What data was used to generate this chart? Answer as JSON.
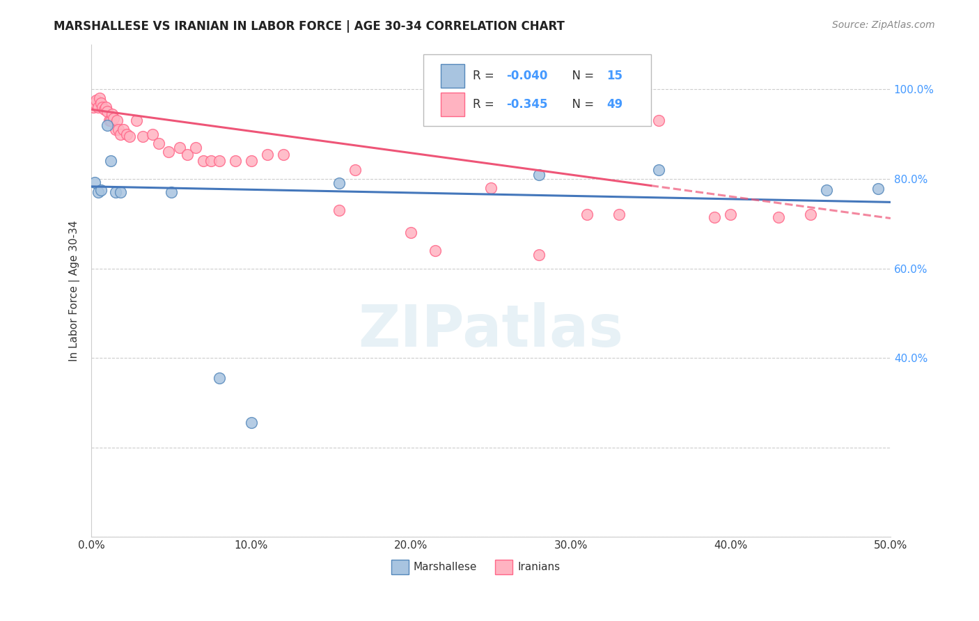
{
  "title": "MARSHALLESE VS IRANIAN IN LABOR FORCE | AGE 30-34 CORRELATION CHART",
  "source_text": "Source: ZipAtlas.com",
  "ylabel_text": "In Labor Force | Age 30-34",
  "xlim": [
    0.0,
    0.5
  ],
  "ylim": [
    0.0,
    1.1
  ],
  "x_tick_vals": [
    0.0,
    0.1,
    0.2,
    0.3,
    0.4,
    0.5
  ],
  "x_tick_labels": [
    "0.0%",
    "10.0%",
    "20.0%",
    "30.0%",
    "40.0%",
    "50.0%"
  ],
  "right_y_ticks": [
    0.4,
    0.6,
    0.8,
    1.0
  ],
  "right_y_tick_labels": [
    "40.0%",
    "60.0%",
    "80.0%",
    "100.0%"
  ],
  "blue_fill": "#A8C4E0",
  "blue_edge": "#5588BB",
  "pink_fill": "#FFB3C1",
  "pink_edge": "#FF6688",
  "blue_line_color": "#4477BB",
  "pink_line_color": "#EE5577",
  "legend_R_blue": "-0.040",
  "legend_N_blue": "15",
  "legend_R_pink": "-0.345",
  "legend_N_pink": "49",
  "watermark": "ZIPatlas",
  "blue_points": [
    [
      0.002,
      0.792
    ],
    [
      0.004,
      0.77
    ],
    [
      0.006,
      0.775
    ],
    [
      0.01,
      0.92
    ],
    [
      0.012,
      0.84
    ],
    [
      0.015,
      0.77
    ],
    [
      0.018,
      0.77
    ],
    [
      0.05,
      0.77
    ],
    [
      0.08,
      0.355
    ],
    [
      0.1,
      0.255
    ],
    [
      0.155,
      0.79
    ],
    [
      0.28,
      0.81
    ],
    [
      0.355,
      0.82
    ],
    [
      0.46,
      0.775
    ],
    [
      0.492,
      0.778
    ]
  ],
  "pink_points": [
    [
      0.001,
      0.96
    ],
    [
      0.002,
      0.97
    ],
    [
      0.003,
      0.975
    ],
    [
      0.004,
      0.96
    ],
    [
      0.005,
      0.98
    ],
    [
      0.006,
      0.97
    ],
    [
      0.007,
      0.96
    ],
    [
      0.008,
      0.955
    ],
    [
      0.009,
      0.96
    ],
    [
      0.01,
      0.95
    ],
    [
      0.011,
      0.93
    ],
    [
      0.012,
      0.93
    ],
    [
      0.013,
      0.945
    ],
    [
      0.014,
      0.935
    ],
    [
      0.015,
      0.91
    ],
    [
      0.016,
      0.93
    ],
    [
      0.017,
      0.91
    ],
    [
      0.018,
      0.9
    ],
    [
      0.02,
      0.91
    ],
    [
      0.022,
      0.9
    ],
    [
      0.024,
      0.895
    ],
    [
      0.028,
      0.93
    ],
    [
      0.032,
      0.895
    ],
    [
      0.038,
      0.9
    ],
    [
      0.042,
      0.88
    ],
    [
      0.048,
      0.86
    ],
    [
      0.055,
      0.87
    ],
    [
      0.06,
      0.855
    ],
    [
      0.065,
      0.87
    ],
    [
      0.07,
      0.84
    ],
    [
      0.075,
      0.84
    ],
    [
      0.08,
      0.84
    ],
    [
      0.09,
      0.84
    ],
    [
      0.1,
      0.84
    ],
    [
      0.11,
      0.855
    ],
    [
      0.12,
      0.855
    ],
    [
      0.155,
      0.73
    ],
    [
      0.165,
      0.82
    ],
    [
      0.2,
      0.68
    ],
    [
      0.215,
      0.64
    ],
    [
      0.25,
      0.78
    ],
    [
      0.28,
      0.63
    ],
    [
      0.31,
      0.72
    ],
    [
      0.33,
      0.72
    ],
    [
      0.355,
      0.93
    ],
    [
      0.39,
      0.715
    ],
    [
      0.4,
      0.72
    ],
    [
      0.43,
      0.715
    ],
    [
      0.45,
      0.72
    ]
  ],
  "blue_line": [
    [
      0.0,
      0.783
    ],
    [
      0.5,
      0.748
    ]
  ],
  "pink_line_solid": [
    [
      0.0,
      0.955
    ],
    [
      0.35,
      0.785
    ]
  ],
  "pink_line_dashed": [
    [
      0.35,
      0.785
    ],
    [
      0.5,
      0.712
    ]
  ],
  "grid_color": "#CCCCCC",
  "grid_linestyle": "--",
  "bg_color": "white",
  "title_fontsize": 12,
  "source_fontsize": 10,
  "tick_fontsize": 11,
  "right_tick_color": "#4499FF",
  "text_color": "#333333",
  "italic_color": "#888888"
}
